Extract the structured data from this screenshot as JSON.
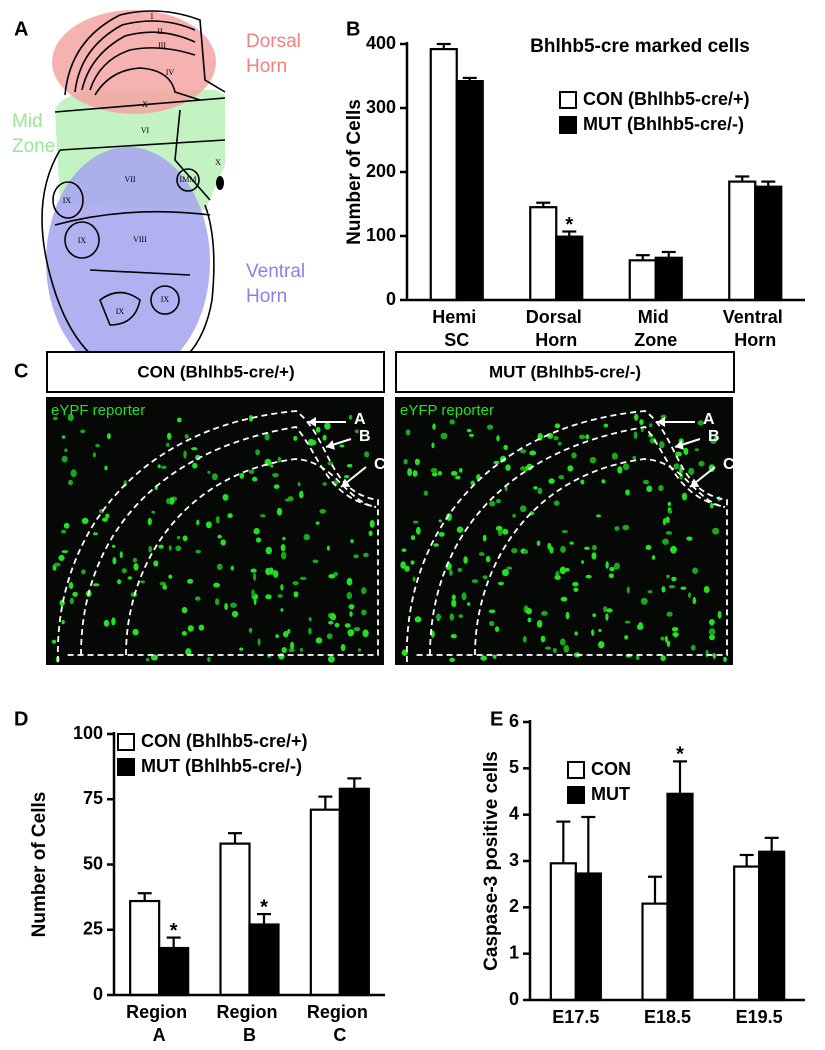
{
  "panel_labels": [
    "A",
    "B",
    "C",
    "D",
    "E"
  ],
  "diagram": {
    "regions": [
      {
        "lines": [
          "Dorsal",
          "Horn"
        ]
      },
      {
        "lines": [
          "Mid",
          "Zone"
        ]
      },
      {
        "lines": [
          "Ventral",
          "Horn"
        ]
      }
    ],
    "laminae": [
      "I",
      "II",
      "III",
      "IV",
      "X",
      "VI",
      "VII",
      "IMM",
      "X",
      "IX",
      "IX",
      "VIII",
      "IX",
      "IX"
    ]
  },
  "images": [
    {
      "title": "CON (Bhlhb5-cre/+)",
      "label": "eYPF reporter",
      "arrows": [
        "A",
        "B",
        "C"
      ]
    },
    {
      "title": "MUT (Bhlhb5-cre/-)",
      "label": "eYFP reporter",
      "arrows": [
        "A",
        "B",
        "C"
      ]
    }
  ],
  "chart_data": [
    {
      "type": "bar",
      "title": "Bhlhb5-cre marked cells",
      "ylabel": "Number of Cells",
      "categories": [
        "Hemi SC",
        "Dorsal Horn",
        "Mid Zone",
        "Ventral Horn"
      ],
      "series": [
        {
          "name": "CON (Bhlhb5-cre/+)",
          "color": "#ffffff",
          "values": [
            392,
            145,
            62,
            185
          ],
          "errors": [
            8,
            7,
            8,
            8
          ]
        },
        {
          "name": "MUT (Bhlhb5-cre/-)",
          "color": "#000000",
          "values": [
            342,
            99,
            66,
            177
          ],
          "errors": [
            5,
            8,
            9,
            8
          ]
        }
      ],
      "ylim": [
        0,
        400
      ],
      "yticks": [
        0,
        100,
        200,
        300,
        400
      ],
      "legend": "upper right",
      "annotations": [
        {
          "text": "*",
          "category": "Dorsal Horn",
          "series": "MUT (Bhlhb5-cre/-)"
        }
      ]
    },
    {
      "type": "bar",
      "ylabel": "Number of Cells",
      "categories": [
        "Region A",
        "Region B",
        "Region C"
      ],
      "series": [
        {
          "name": "CON (Bhlhb5-cre/+)",
          "color": "#ffffff",
          "values": [
            36,
            58,
            71
          ],
          "errors": [
            3,
            4,
            5
          ]
        },
        {
          "name": "MUT (Bhlhb5-cre/-)",
          "color": "#000000",
          "values": [
            18,
            27,
            79
          ],
          "errors": [
            4,
            4,
            4
          ]
        }
      ],
      "ylim": [
        0,
        100
      ],
      "yticks": [
        0,
        25,
        50,
        75,
        100
      ],
      "legend": "upper left",
      "annotations": [
        {
          "text": "*",
          "category": "Region A",
          "series": "MUT (Bhlhb5-cre/-)"
        },
        {
          "text": "*",
          "category": "Region B",
          "series": "MUT (Bhlhb5-cre/-)"
        }
      ]
    },
    {
      "type": "bar",
      "ylabel": "Caspase-3 positive cells",
      "categories": [
        "E17.5",
        "E18.5",
        "E19.5"
      ],
      "series": [
        {
          "name": "CON",
          "color": "#ffffff",
          "values": [
            2.95,
            2.08,
            2.88
          ],
          "errors": [
            0.9,
            0.58,
            0.25
          ]
        },
        {
          "name": "MUT",
          "color": "#000000",
          "values": [
            2.73,
            4.45,
            3.2
          ],
          "errors": [
            1.22,
            0.7,
            0.3
          ]
        }
      ],
      "ylim": [
        0,
        6
      ],
      "yticks": [
        0,
        1,
        2,
        3,
        4,
        5,
        6
      ],
      "legend": "upper left",
      "annotations": [
        {
          "text": "*",
          "category": "E18.5",
          "series": "MUT"
        }
      ]
    }
  ]
}
